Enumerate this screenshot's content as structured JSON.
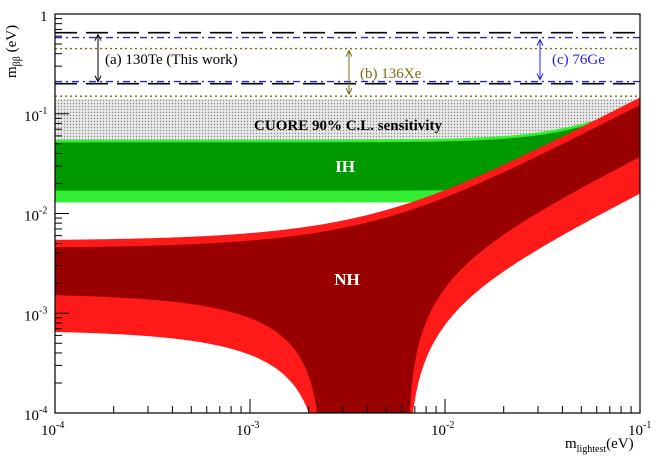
{
  "chart_data": {
    "type": "area",
    "xlabel": "m",
    "xlabel_sub": "lightest",
    "xlabel_unit": "(eV)",
    "ylabel": "m",
    "ylabel_sub": "ββ",
    "ylabel_unit": " (eV)",
    "x_scale": "log",
    "y_scale": "log",
    "xlim": [
      0.0001,
      0.1
    ],
    "ylim": [
      0.0001,
      1
    ],
    "x_ticks": [
      {
        "value": 0.0001,
        "base": "10",
        "exp": "-4"
      },
      {
        "value": 0.001,
        "base": "10",
        "exp": "-3"
      },
      {
        "value": 0.01,
        "base": "10",
        "exp": "-2"
      },
      {
        "value": 0.1,
        "base": "10",
        "exp": "-1"
      }
    ],
    "y_ticks": [
      {
        "value": 0.0001,
        "base": "10",
        "exp": "-4"
      },
      {
        "value": 0.001,
        "base": "10",
        "exp": "-3"
      },
      {
        "value": 0.01,
        "base": "10",
        "exp": "-2"
      },
      {
        "value": 0.1,
        "base": "10",
        "exp": "-1"
      },
      {
        "value": 1,
        "base": "1",
        "exp": ""
      }
    ],
    "bands": {
      "ih_label": "IH",
      "nh_label": "NH",
      "ih_outer_color": "#33ee33",
      "ih_inner_color": "#009900",
      "nh_outer_color": "#ff1a1a",
      "nh_inner_color": "#990000"
    },
    "sensitivity": {
      "label": "CUORE 90% C.L. sensitivity",
      "range": [
        0.05,
        0.14
      ],
      "color": "#cccccc"
    },
    "limits": [
      {
        "label": "(a) 130Te (This work)",
        "range": [
          0.2,
          0.65
        ],
        "color": "#000000",
        "style": "dashed"
      },
      {
        "label": "(b) 136Xe",
        "range": [
          0.15,
          0.45
        ],
        "color": "#7a6a10",
        "style": "dotted"
      },
      {
        "label": "(c) 76Ge",
        "range": [
          0.21,
          0.58
        ],
        "color": "#2222ee",
        "style": "dashdot"
      }
    ]
  }
}
